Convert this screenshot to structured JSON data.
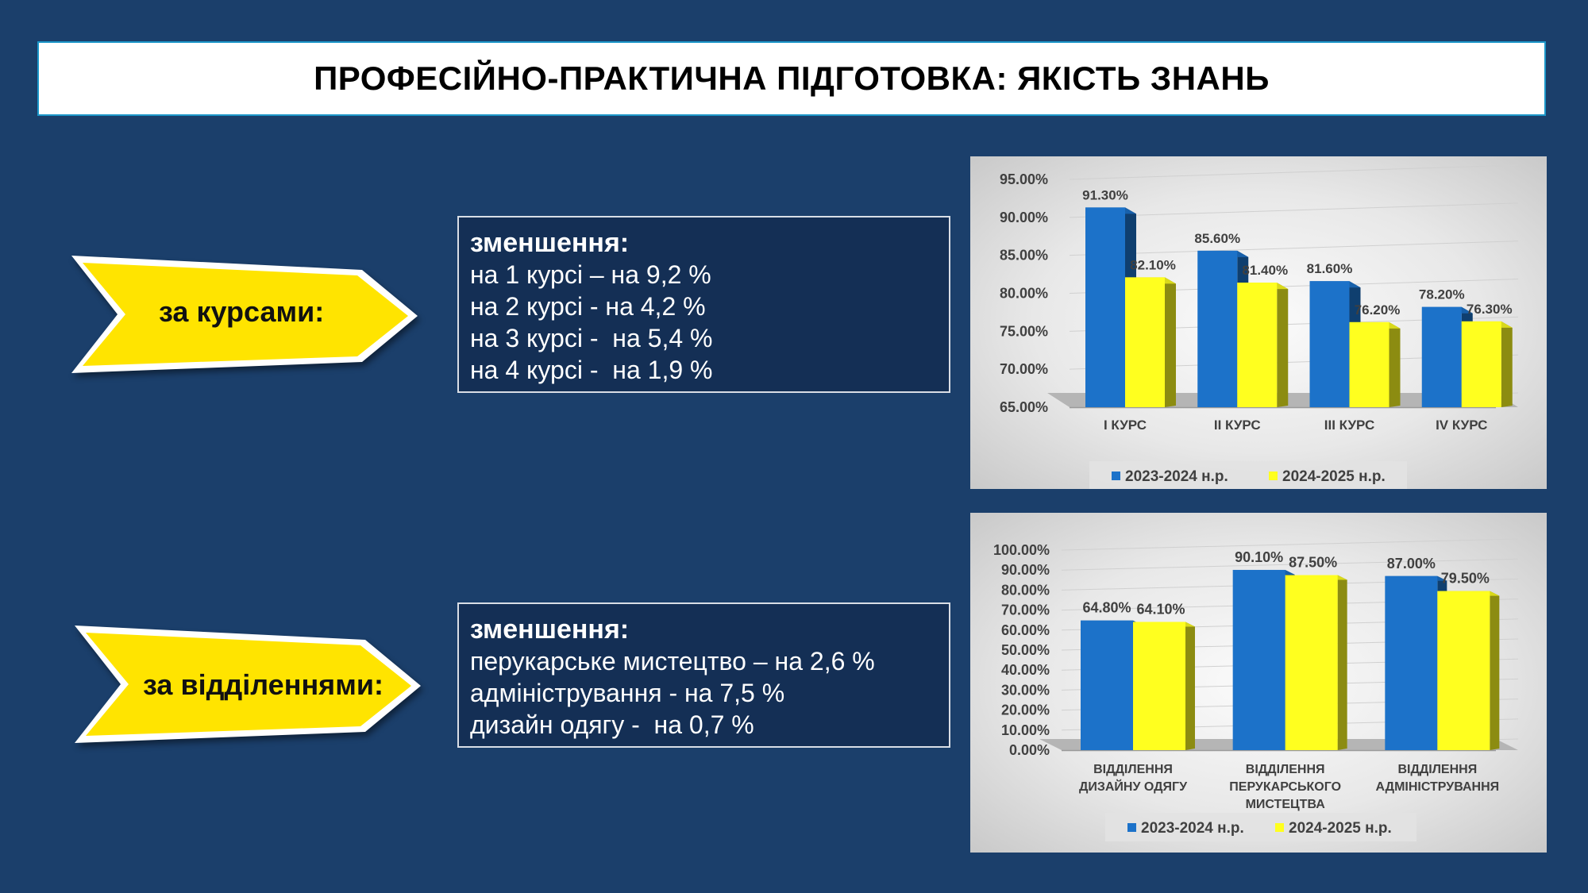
{
  "title": "ПРОФЕСІЙНО-ПРАКТИЧНА ПІДГОТОВКА: ЯКІСТЬ ЗНАНЬ",
  "colors": {
    "background": "#1b3f6b",
    "arrow": "#ffe400",
    "series1": "#1c72c9",
    "series2": "#ffff1f"
  },
  "sections": [
    {
      "arrow_label": "за курсами:",
      "box_heading": "зменшення:",
      "box_lines": [
        "на 1 курсі – на 9,2 %",
        "на 2 курсі - на 4,2 %",
        "на 3 курсі -  на 5,4 %",
        "на 4 курсі -  на 1,9 %"
      ]
    },
    {
      "arrow_label": "за відділеннями:",
      "box_heading": "зменшення:",
      "box_lines": [
        "перукарське мистецтво – на 2,6 %",
        "адміністрування - на 7,5 %",
        "дизайн одягу -  на 0,7 %"
      ]
    }
  ],
  "chart_data": [
    {
      "type": "bar",
      "categories": [
        "І КУРС",
        "ІІ КУРС",
        "ІІІ КУРС",
        "IV КУРС"
      ],
      "series": [
        {
          "name": "2023-2024 н.р.",
          "values": [
            91.3,
            85.6,
            81.6,
            78.2
          ],
          "labels": [
            "91.30%",
            "85.60%",
            "81.60%",
            "78.20%"
          ]
        },
        {
          "name": "2024-2025 н.р.",
          "values": [
            82.1,
            81.4,
            76.2,
            76.3
          ],
          "labels": [
            "82.10%",
            "81.40%",
            "76.20%",
            "76.30%"
          ]
        }
      ],
      "ylim": [
        65,
        95
      ],
      "yticks": [
        "65.00%",
        "70.00%",
        "75.00%",
        "80.00%",
        "85.00%",
        "90.00%",
        "95.00%"
      ],
      "legend": "bottom"
    },
    {
      "type": "bar",
      "categories": [
        [
          "ВІДДІЛЕННЯ",
          "ДИЗАЙНУ ОДЯГУ"
        ],
        [
          "ВІДДІЛЕННЯ",
          "ПЕРУКАРСЬКОГО",
          "МИСТЕЦТВА"
        ],
        [
          "ВІДДІЛЕННЯ",
          "АДМІНІСТРУВАННЯ"
        ]
      ],
      "series": [
        {
          "name": "2023-2024 н.р.",
          "values": [
            64.8,
            90.1,
            87.0
          ],
          "labels": [
            "64.80%",
            "90.10%",
            "87.00%"
          ]
        },
        {
          "name": "2024-2025 н.р.",
          "values": [
            64.1,
            87.5,
            79.5
          ],
          "labels": [
            "64.10%",
            "87.50%",
            "79.50%"
          ]
        }
      ],
      "ylim": [
        0,
        100
      ],
      "yticks": [
        "0.00%",
        "10.00%",
        "20.00%",
        "30.00%",
        "40.00%",
        "50.00%",
        "60.00%",
        "70.00%",
        "80.00%",
        "90.00%",
        "100.00%"
      ],
      "legend": "bottom"
    }
  ]
}
